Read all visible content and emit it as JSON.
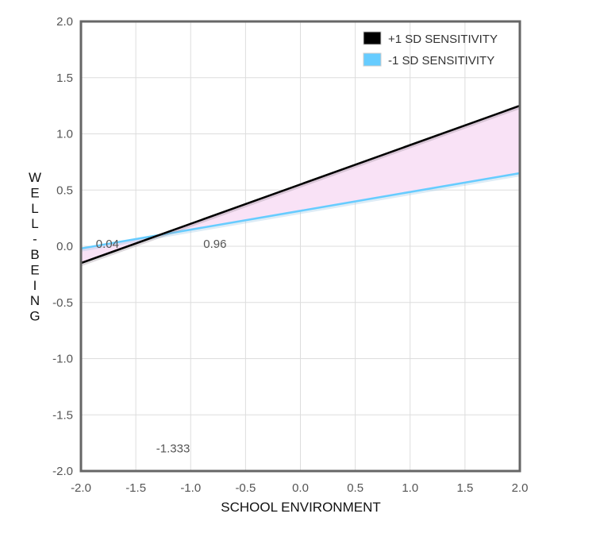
{
  "chart_data": {
    "type": "line",
    "xlabel": "SCHOOL ENVIRONMENT",
    "ylabel": "WELL-BEING",
    "xlim": [
      -2.0,
      2.0
    ],
    "ylim": [
      -2.0,
      2.0
    ],
    "x_ticks": [
      "-2.0",
      "-1.5",
      "-1.0",
      "-0.5",
      "0.0",
      "0.5",
      "1.0",
      "1.5",
      "2.0"
    ],
    "y_ticks": [
      "2.0",
      "1.5",
      "1.0",
      "0.5",
      "0.0",
      "-0.5",
      "-1.0",
      "-1.5",
      "-2.0"
    ],
    "grid": true,
    "legend_position": "top-right",
    "series": [
      {
        "name": "+1 SD SENSITIVITY",
        "color": "#000000",
        "x": [
          -2.0,
          2.0
        ],
        "y": [
          -0.15,
          1.25
        ]
      },
      {
        "name": "-1 SD SENSITIVITY",
        "color": "#66ccff",
        "x": [
          -2.0,
          2.0
        ],
        "y": [
          -0.02,
          0.65
        ]
      }
    ],
    "region_fill_color": "#f9e2f6",
    "annotations": [
      {
        "text": "0.04",
        "x": -1.98,
        "y": 0.0
      },
      {
        "text": "0.96",
        "x": -1.0,
        "y": 0.0
      },
      {
        "text": "-1.333",
        "x": -1.43,
        "y": -1.82
      }
    ]
  }
}
